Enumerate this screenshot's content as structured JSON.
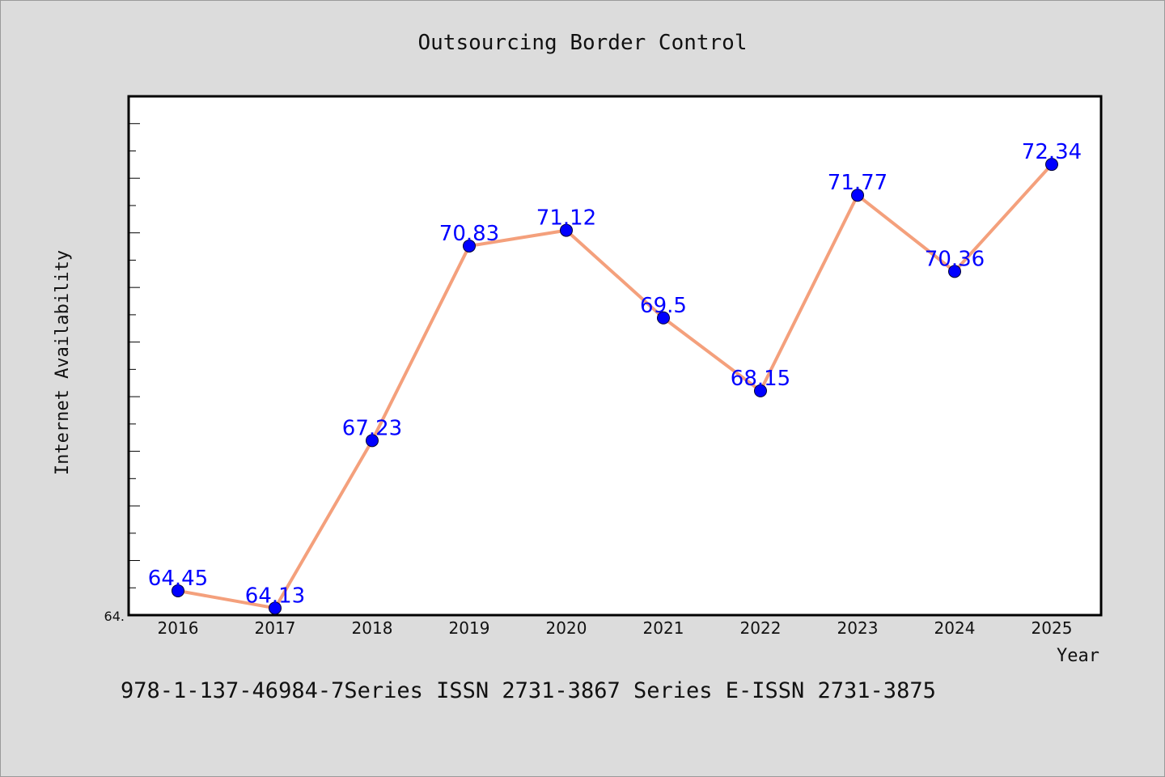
{
  "chart_data": {
    "type": "line",
    "title": "Outsourcing Border Control",
    "xlabel": "Year",
    "ylabel": "Internet Availability",
    "categories": [
      "2016",
      "2017",
      "2018",
      "2019",
      "2020",
      "2021",
      "2022",
      "2023",
      "2024",
      "2025"
    ],
    "series": [
      {
        "values": [
          64.45,
          64.13,
          67.23,
          70.83,
          71.12,
          69.5,
          68.15,
          71.77,
          70.36,
          72.34
        ],
        "labels": [
          "64.45",
          "64.13",
          "67.23",
          "70.83",
          "71.12",
          "69.5",
          "68.15",
          "71.77",
          "70.36",
          "72.34"
        ],
        "line_color": "#f4a07c",
        "marker_color": "#0000ff"
      }
    ],
    "y_min_label": "64.",
    "ylim": [
      64.0,
      73.6
    ],
    "grid": false,
    "background": "#dcdcdc",
    "plot_background": "#ffffff"
  },
  "footer": {
    "text": "978-1-137-46984-7Series ISSN 2731-3867 Series E-ISSN 2731-3875"
  }
}
